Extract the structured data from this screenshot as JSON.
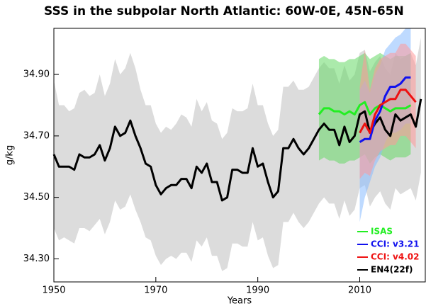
{
  "chart_data": {
    "type": "line",
    "title": "SSS in the subpolar North Atlantic: 60W-0E, 45N-65N",
    "xlabel": "Years",
    "ylabel": "g/kg",
    "xlim": [
      1950,
      2023
    ],
    "xticks": [
      1950,
      1970,
      1990,
      2010
    ],
    "ylim": [
      34.225,
      35.05
    ],
    "yticks": [
      {
        "value": 34.3,
        "label": "34.30"
      },
      {
        "value": 34.5,
        "label": "34.50"
      },
      {
        "value": 34.7,
        "label": "34.70"
      },
      {
        "value": 34.9,
        "label": "34.90"
      }
    ],
    "legend": "lower right",
    "series": [
      {
        "name": "ISAS",
        "color": "#22ee22",
        "band_color": "#66d966",
        "x": [
          2002,
          2003,
          2004,
          2005,
          2006,
          2007,
          2008,
          2009,
          2010,
          2011,
          2012,
          2013,
          2014,
          2015,
          2016,
          2017,
          2018,
          2019,
          2020
        ],
        "values": [
          34.77,
          34.79,
          34.79,
          34.78,
          34.78,
          34.77,
          34.78,
          34.77,
          34.8,
          34.81,
          34.77,
          34.79,
          34.8,
          34.79,
          34.78,
          34.79,
          34.79,
          34.79,
          34.8
        ],
        "upper": [
          34.95,
          34.96,
          34.95,
          34.95,
          34.94,
          34.94,
          34.95,
          34.95,
          34.96,
          34.97,
          34.95,
          34.96,
          34.97,
          34.96,
          34.95,
          34.96,
          34.96,
          34.96,
          34.97
        ],
        "lower": [
          34.62,
          34.63,
          34.62,
          34.62,
          34.61,
          34.61,
          34.62,
          34.62,
          34.63,
          34.64,
          34.61,
          34.63,
          34.64,
          34.63,
          34.62,
          34.63,
          34.63,
          34.63,
          34.64
        ]
      },
      {
        "name": "CCI: v3.21",
        "color": "#1111ee",
        "band_color": "#88bbff",
        "x": [
          2010,
          2011,
          2012,
          2013,
          2014,
          2015,
          2016,
          2017,
          2018,
          2019,
          2020
        ],
        "values": [
          34.68,
          34.69,
          34.69,
          34.75,
          34.78,
          34.83,
          34.86,
          34.86,
          34.87,
          34.89,
          34.89
        ],
        "upper": [
          34.85,
          34.88,
          34.84,
          34.9,
          34.93,
          34.98,
          35.0,
          35.02,
          35.03,
          35.05,
          35.05
        ],
        "lower": [
          34.42,
          34.5,
          34.55,
          34.6,
          34.63,
          34.68,
          34.71,
          34.71,
          34.72,
          34.74,
          34.74
        ]
      },
      {
        "name": "CCI: v4.02",
        "color": "#ee1111",
        "band_color": "#ff9999",
        "x": [
          2010,
          2011,
          2012,
          2013,
          2014,
          2015,
          2016,
          2017,
          2018,
          2019,
          2020,
          2021
        ],
        "values": [
          34.71,
          34.74,
          34.71,
          34.77,
          34.8,
          34.81,
          34.82,
          34.82,
          34.85,
          34.85,
          34.83,
          34.81
        ],
        "upper": [
          34.86,
          34.98,
          34.85,
          34.92,
          34.95,
          34.96,
          34.97,
          34.97,
          35.0,
          35.0,
          34.98,
          34.96
        ],
        "lower": [
          34.56,
          34.58,
          34.57,
          34.62,
          34.65,
          34.66,
          34.67,
          34.67,
          34.7,
          34.7,
          34.68,
          34.66
        ]
      },
      {
        "name": "EN4(22f)",
        "color": "#000000",
        "band_color": "#dcdcdc",
        "x": [
          1950,
          1951,
          1952,
          1953,
          1954,
          1955,
          1956,
          1957,
          1958,
          1959,
          1960,
          1961,
          1962,
          1963,
          1964,
          1965,
          1966,
          1967,
          1968,
          1969,
          1970,
          1971,
          1972,
          1973,
          1974,
          1975,
          1976,
          1977,
          1978,
          1979,
          1980,
          1981,
          1982,
          1983,
          1984,
          1985,
          1986,
          1987,
          1988,
          1989,
          1990,
          1991,
          1992,
          1993,
          1994,
          1995,
          1996,
          1997,
          1998,
          1999,
          2000,
          2001,
          2002,
          2003,
          2004,
          2005,
          2006,
          2007,
          2008,
          2009,
          2010,
          2011,
          2012,
          2013,
          2014,
          2015,
          2016,
          2017,
          2018,
          2019,
          2020,
          2021,
          2022
        ],
        "values": [
          34.64,
          34.6,
          34.6,
          34.6,
          34.59,
          34.64,
          34.63,
          34.63,
          34.64,
          34.67,
          34.62,
          34.66,
          34.73,
          34.7,
          34.71,
          34.75,
          34.7,
          34.66,
          34.61,
          34.6,
          34.54,
          34.51,
          34.53,
          34.54,
          34.54,
          34.56,
          34.56,
          34.53,
          34.6,
          34.58,
          34.61,
          34.55,
          34.55,
          34.49,
          34.5,
          34.59,
          34.59,
          34.58,
          34.58,
          34.66,
          34.6,
          34.61,
          34.55,
          34.5,
          34.52,
          34.66,
          34.66,
          34.69,
          34.66,
          34.64,
          34.66,
          34.69,
          34.72,
          34.74,
          34.72,
          34.72,
          34.67,
          34.73,
          34.68,
          34.7,
          34.77,
          34.78,
          34.71,
          34.74,
          34.76,
          34.72,
          34.7,
          34.77,
          34.75,
          34.76,
          34.77,
          34.73,
          34.82
        ],
        "upper": [
          34.88,
          34.8,
          34.8,
          34.78,
          34.79,
          34.84,
          34.85,
          34.83,
          34.84,
          34.9,
          34.83,
          34.87,
          34.95,
          34.9,
          34.92,
          34.97,
          34.92,
          34.85,
          34.8,
          34.8,
          34.74,
          34.71,
          34.73,
          34.72,
          34.74,
          34.77,
          34.76,
          34.73,
          34.82,
          34.78,
          34.81,
          34.75,
          34.74,
          34.69,
          34.71,
          34.79,
          34.78,
          34.78,
          34.79,
          34.87,
          34.8,
          34.8,
          34.74,
          34.7,
          34.72,
          34.86,
          34.86,
          34.88,
          34.85,
          34.85,
          34.86,
          34.89,
          34.92,
          34.94,
          34.92,
          34.92,
          34.87,
          34.93,
          34.88,
          34.9,
          34.97,
          34.98,
          34.91,
          34.94,
          34.96,
          34.92,
          34.9,
          34.97,
          34.95,
          34.96,
          34.97,
          34.93,
          35.02
        ],
        "lower": [
          34.4,
          34.36,
          34.37,
          34.36,
          34.35,
          34.4,
          34.4,
          34.39,
          34.41,
          34.43,
          34.38,
          34.42,
          34.49,
          34.46,
          34.47,
          34.51,
          34.46,
          34.42,
          34.37,
          34.36,
          34.31,
          34.28,
          34.3,
          34.31,
          34.3,
          34.32,
          34.32,
          34.29,
          34.36,
          34.34,
          34.37,
          34.31,
          34.31,
          34.26,
          34.27,
          34.35,
          34.35,
          34.34,
          34.34,
          34.42,
          34.36,
          34.37,
          34.31,
          34.27,
          34.28,
          34.42,
          34.42,
          34.45,
          34.42,
          34.4,
          34.42,
          34.45,
          34.48,
          34.5,
          34.48,
          34.48,
          34.43,
          34.49,
          34.44,
          34.46,
          34.53,
          34.54,
          34.47,
          34.5,
          34.52,
          34.48,
          34.46,
          34.53,
          34.51,
          34.52,
          34.53,
          34.49,
          34.58
        ]
      }
    ]
  }
}
